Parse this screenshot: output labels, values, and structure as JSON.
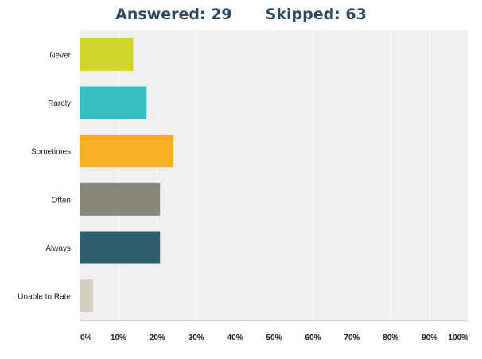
{
  "header": {
    "answered_label": "Answered:",
    "answered_value": "29",
    "skipped_label": "Skipped:",
    "skipped_value": "63"
  },
  "chart_data": {
    "type": "bar",
    "orientation": "horizontal",
    "categories": [
      "Never",
      "Rarely",
      "Sometimes",
      "Often",
      "Always",
      "Unable to Rate"
    ],
    "values": [
      13.79,
      17.24,
      24.14,
      20.69,
      20.69,
      3.45
    ],
    "unit": "%",
    "xlim": [
      0,
      100
    ],
    "x_ticks": [
      "0%",
      "10%",
      "20%",
      "30%",
      "40%",
      "50%",
      "60%",
      "70%",
      "80%",
      "90%",
      "100%"
    ],
    "grid": true,
    "legend": "none",
    "colors": [
      "#cdd42a",
      "#37bfc2",
      "#f7ae22",
      "#888878",
      "#2e5f6e",
      "#d0cfc2"
    ],
    "plot_background": "#f0f0f0",
    "grid_color": "#ffffff"
  }
}
